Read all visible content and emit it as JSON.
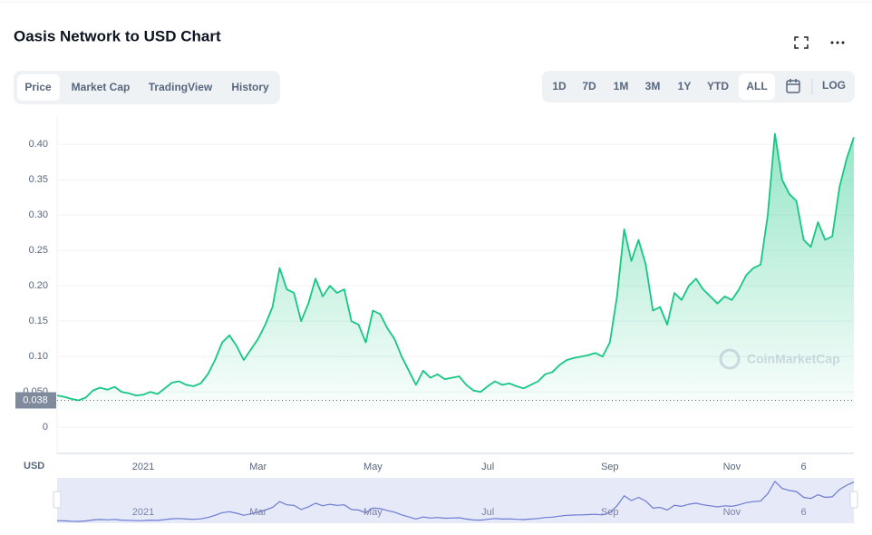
{
  "header": {
    "title": "Oasis Network to USD Chart"
  },
  "tabs": [
    "Price",
    "Market Cap",
    "TradingView",
    "History"
  ],
  "ranges": [
    "1D",
    "7D",
    "1M",
    "3M",
    "1Y",
    "YTD",
    "ALL"
  ],
  "log": "LOG",
  "chart_data": {
    "type": "line",
    "y_label": "USD",
    "watermark": "CoinMarketCap",
    "reference_line": 0.038,
    "ylim": [
      -0.037,
      0.44
    ],
    "yticks": [
      0,
      {
        "value": 0.05,
        "label": "0.050"
      },
      {
        "value": 0.1,
        "label": "0.10"
      },
      0.15,
      {
        "value": 0.2,
        "label": "0.20"
      },
      0.25,
      {
        "value": 0.3,
        "label": "0.30"
      },
      0.35,
      {
        "value": 0.4,
        "label": "0.40"
      }
    ],
    "grid": true,
    "categories": [
      null,
      null,
      null,
      null,
      null,
      null,
      null,
      null,
      null,
      null,
      null,
      null,
      "2021",
      null,
      null,
      null,
      null,
      null,
      null,
      null,
      null,
      null,
      null,
      null,
      null,
      null,
      null,
      null,
      "Mar",
      null,
      null,
      null,
      null,
      null,
      null,
      null,
      null,
      null,
      null,
      null,
      null,
      null,
      null,
      null,
      "May",
      null,
      null,
      null,
      null,
      null,
      null,
      null,
      null,
      null,
      null,
      null,
      null,
      null,
      null,
      null,
      "Jul",
      null,
      null,
      null,
      null,
      null,
      null,
      null,
      null,
      null,
      null,
      null,
      null,
      null,
      null,
      null,
      null,
      "Sep",
      null,
      null,
      null,
      null,
      null,
      null,
      null,
      null,
      null,
      null,
      null,
      null,
      null,
      null,
      null,
      null,
      "Nov",
      null,
      null,
      null,
      null,
      null,
      null,
      null,
      null,
      null,
      "6",
      null,
      null,
      null,
      null,
      null,
      null,
      null
    ],
    "series": [
      {
        "color": "#16c784",
        "values": [
          0.045,
          0.043,
          0.04,
          0.038,
          0.042,
          0.052,
          0.056,
          0.053,
          0.057,
          0.05,
          0.048,
          0.045,
          0.046,
          0.05,
          0.047,
          0.055,
          0.063,
          0.065,
          0.06,
          0.058,
          0.062,
          0.075,
          0.095,
          0.12,
          0.13,
          0.115,
          0.095,
          0.11,
          0.125,
          0.145,
          0.17,
          0.225,
          0.195,
          0.19,
          0.15,
          0.175,
          0.21,
          0.185,
          0.2,
          0.19,
          0.195,
          0.15,
          0.145,
          0.12,
          0.165,
          0.16,
          0.14,
          0.125,
          0.1,
          0.08,
          0.06,
          0.08,
          0.07,
          0.075,
          0.068,
          0.07,
          0.072,
          0.06,
          0.052,
          0.05,
          0.058,
          0.065,
          0.06,
          0.062,
          0.058,
          0.055,
          0.06,
          0.065,
          0.075,
          0.078,
          0.088,
          0.095,
          0.098,
          0.1,
          0.102,
          0.105,
          0.1,
          0.12,
          0.185,
          0.28,
          0.235,
          0.265,
          0.23,
          0.165,
          0.17,
          0.145,
          0.19,
          0.18,
          0.2,
          0.21,
          0.195,
          0.185,
          0.175,
          0.185,
          0.18,
          0.195,
          0.215,
          0.225,
          0.23,
          0.3,
          0.415,
          0.35,
          0.33,
          0.32,
          0.265,
          0.255,
          0.29,
          0.265,
          0.27,
          0.34,
          0.38,
          0.41
        ]
      }
    ]
  }
}
